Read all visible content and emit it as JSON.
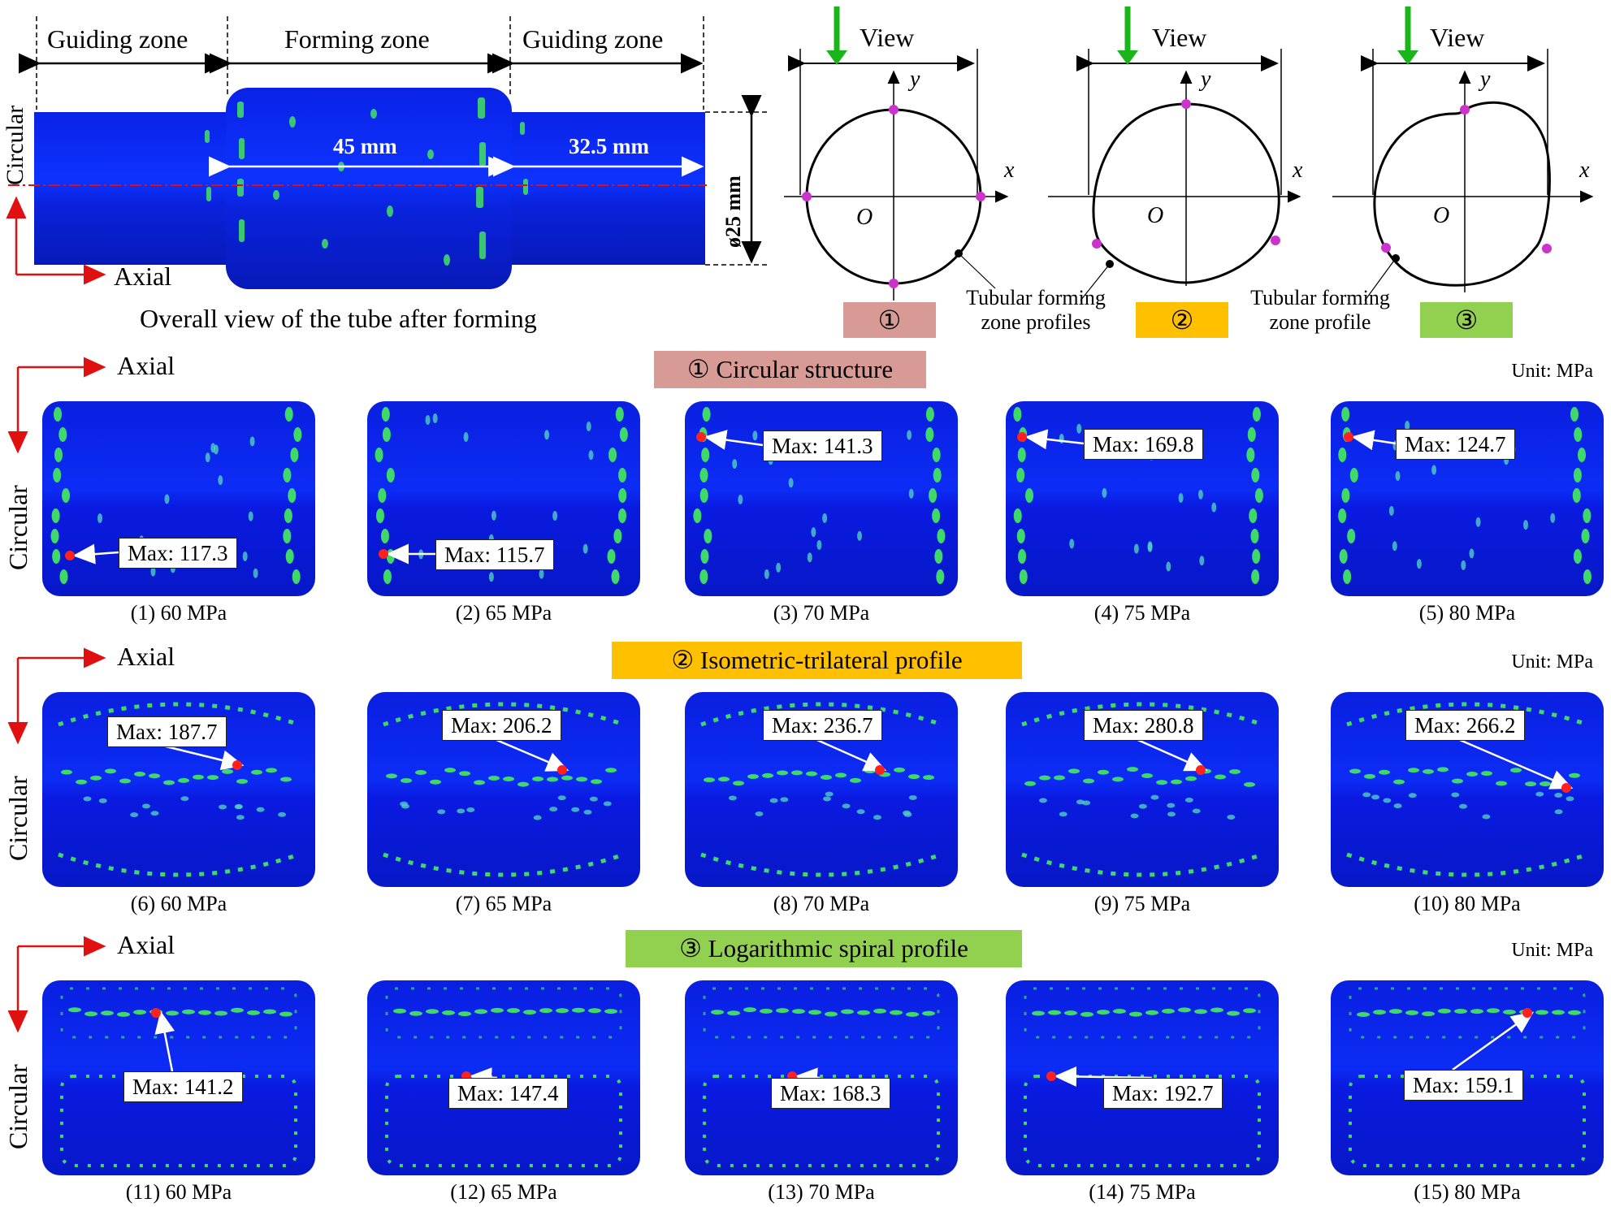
{
  "top": {
    "zone_labels": [
      "Guiding zone",
      "Forming zone",
      "Guiding zone"
    ],
    "dim_45": "45 mm",
    "dim_325": "32.5 mm",
    "dim_dia": "ø25 mm",
    "circular_label": "Circular",
    "axial_label": "Axial",
    "caption": "Overall view of the tube after forming",
    "profiles": [
      {
        "view": "View",
        "badge": "①",
        "note": "",
        "color": "#d89a94"
      },
      {
        "view": "View",
        "badge": "②",
        "note": "",
        "color": "#ffc000"
      },
      {
        "view": "View",
        "badge": "③",
        "note": "",
        "color": "#92d050"
      }
    ],
    "note_1": "Tubular forming zone profiles",
    "note_2": "Tubular forming zone profile",
    "axis_x": "x",
    "axis_y": "y",
    "origin": "O"
  },
  "sections": [
    {
      "title": "① Circular structure",
      "color": "#d89a94",
      "unit": "Unit: MPa",
      "axial": "Axial",
      "circular": "Circular",
      "panels": [
        {
          "caption": "(1) 60 MPa",
          "max": "Max: 117.3"
        },
        {
          "caption": "(2) 65 MPa",
          "max": "Max: 115.7"
        },
        {
          "caption": "(3) 70 MPa",
          "max": "Max: 141.3"
        },
        {
          "caption": "(4) 75 MPa",
          "max": "Max: 169.8"
        },
        {
          "caption": "(5) 80 MPa",
          "max": "Max: 124.7"
        }
      ]
    },
    {
      "title": "② Isometric-trilateral profile",
      "color": "#ffc000",
      "unit": "Unit: MPa",
      "axial": "Axial",
      "circular": "Circular",
      "panels": [
        {
          "caption": "(6) 60 MPa",
          "max": "Max: 187.7"
        },
        {
          "caption": "(7) 65 MPa",
          "max": "Max: 206.2"
        },
        {
          "caption": "(8) 70 MPa",
          "max": "Max: 236.7"
        },
        {
          "caption": "(9) 75 MPa",
          "max": "Max: 280.8"
        },
        {
          "caption": "(10) 80 MPa",
          "max": "Max: 266.2"
        }
      ]
    },
    {
      "title": "③ Logarithmic spiral profile",
      "color": "#92d050",
      "unit": "Unit: MPa",
      "axial": "Axial",
      "circular": "Circular",
      "panels": [
        {
          "caption": "(11) 60 MPa",
          "max": "Max: 141.2"
        },
        {
          "caption": "(12) 65 MPa",
          "max": "Max: 147.4"
        },
        {
          "caption": "(13) 70 MPa",
          "max": "Max: 168.3"
        },
        {
          "caption": "(14) 75 MPa",
          "max": "Max: 192.7"
        },
        {
          "caption": "(15) 80 MPa",
          "max": "Max: 159.1"
        }
      ]
    }
  ]
}
